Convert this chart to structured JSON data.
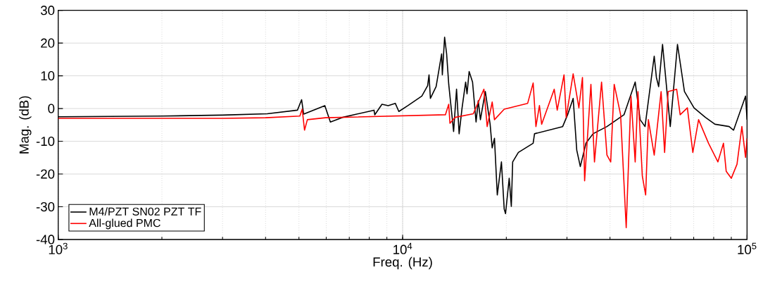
{
  "chart_data": {
    "type": "line",
    "xlabel": "Freq. (Hz)",
    "ylabel": "Mag. (dB)",
    "log": "x",
    "xlim": [
      1000,
      100000
    ],
    "ylim": [
      -40,
      30
    ],
    "xticks": [
      {
        "value": 1000,
        "label": "10$^{3}$"
      },
      {
        "value": 10000,
        "label": "10$^{4}$"
      },
      {
        "value": 100000,
        "label": "10$^{5}$"
      }
    ],
    "yticks": [
      -40,
      -30,
      -20,
      -10,
      0,
      10,
      20,
      30
    ],
    "grid": true,
    "legend": "bottom left",
    "marker": "none",
    "line_style": "solid",
    "series": [
      {
        "name": "M4/PZT SN02 PZT TF",
        "color": "#000000",
        "x": [
          1000,
          2000,
          3000,
          4045,
          4950,
          5090,
          5160,
          5945,
          6170,
          6690,
          8260,
          8300,
          8710,
          9080,
          9520,
          9750,
          10360,
          11370,
          11820,
          11930,
          12040,
          12510,
          12980,
          13040,
          13240,
          13420,
          13610,
          14060,
          14340,
          14590,
          14880,
          15240,
          15380,
          15600,
          15960,
          16340,
          16580,
          16820,
          17380,
          17950,
          18200,
          18480,
          18830,
          19360,
          19720,
          19900,
          20390,
          20680,
          20870,
          21680,
          23930,
          24150,
          29150,
          30130,
          31270,
          32030,
          32800,
          34060,
          35720,
          39200,
          43920,
          47340,
          48930,
          50560,
          53760,
          54550,
          55380,
          56840,
          59850,
          62810,
          65800,
          70150,
          75700,
          80700,
          88700,
          91400,
          99000,
          100000
        ],
        "values": [
          -2.5,
          -2.3,
          -2,
          -1.6,
          -0.5,
          2.7,
          -1.7,
          0.9,
          -4.1,
          -2.7,
          -0.5,
          -1.9,
          1.3,
          0.9,
          1.6,
          -0.9,
          0.9,
          3.8,
          7.0,
          10.3,
          3.1,
          6.7,
          16.7,
          10.3,
          21.8,
          16.7,
          7.4,
          -7.0,
          5.9,
          -7.7,
          0.2,
          8.1,
          4.5,
          11.3,
          8.1,
          -4.1,
          2.4,
          -3.4,
          5.2,
          -4.8,
          -12.0,
          -9.1,
          -26.4,
          -16.3,
          -30.7,
          -32.1,
          -21.3,
          -29.9,
          -16.3,
          -13.4,
          -10.6,
          -7.7,
          -5.5,
          -1.9,
          3.1,
          -12.7,
          -17.7,
          -10.6,
          -7.7,
          -5.5,
          -1.9,
          8.1,
          -3.4,
          -5.5,
          16.0,
          9.5,
          6.7,
          19.6,
          -5.5,
          19.6,
          5.2,
          0.2,
          -2.7,
          -4.8,
          -5.5,
          -6.6,
          3.8,
          -3.4
        ]
      },
      {
        "name": "All-glued PMC",
        "color": "#ff0000",
        "x": [
          1000,
          2000,
          3000,
          4000,
          5030,
          5110,
          5190,
          5290,
          5970,
          13310,
          13610,
          13720,
          14200,
          16040,
          17220,
          17600,
          18200,
          18480,
          19720,
          23070,
          23930,
          24380,
          24960,
          25330,
          27550,
          28110,
          29420,
          29850,
          31270,
          32490,
          33280,
          33760,
          35210,
          36060,
          37810,
          39200,
          40190,
          41140,
          42940,
          44580,
          46020,
          47340,
          48220,
          49650,
          50770,
          51700,
          53760,
          56300,
          57630,
          59000,
          62460,
          63950,
          67100,
          69600,
          72330,
          77300,
          82300,
          85400,
          87000,
          90000,
          93500,
          96600,
          99000,
          100000
        ],
        "values": [
          -3,
          -3,
          -3,
          -2.8,
          -2.3,
          -0.2,
          -6.6,
          -3.4,
          -2.8,
          -1.9,
          1.3,
          -4.5,
          -2.7,
          -1.6,
          5.9,
          -5.5,
          2.0,
          -3.4,
          -0.2,
          1.6,
          7.8,
          -5.5,
          0.9,
          -4.8,
          5.9,
          -0.5,
          10.3,
          -2.7,
          10.6,
          0.2,
          9.5,
          -22.1,
          7.4,
          -16.3,
          8.1,
          -14.2,
          -16.3,
          7.4,
          -1.9,
          -36.4,
          3.8,
          -16.3,
          5.2,
          -20.6,
          -26.4,
          -3.4,
          -14.2,
          5.2,
          -13.4,
          5.2,
          5.9,
          -1.9,
          0.2,
          -13.4,
          -3.4,
          -10.6,
          -16.3,
          -10.6,
          -19.2,
          -21.3,
          -17.0,
          -5.5,
          -14.9,
          -9.1
        ]
      }
    ]
  }
}
